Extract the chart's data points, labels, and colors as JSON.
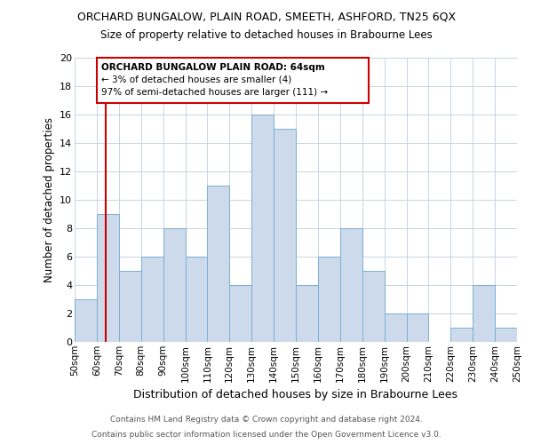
{
  "title": "ORCHARD BUNGALOW, PLAIN ROAD, SMEETH, ASHFORD, TN25 6QX",
  "subtitle": "Size of property relative to detached houses in Brabourne Lees",
  "xlabel": "Distribution of detached houses by size in Brabourne Lees",
  "ylabel": "Number of detached properties",
  "bin_edges": [
    50,
    60,
    70,
    80,
    90,
    100,
    110,
    120,
    130,
    140,
    150,
    160,
    170,
    180,
    190,
    200,
    210,
    220,
    230,
    240,
    250
  ],
  "counts": [
    3,
    9,
    5,
    6,
    8,
    6,
    11,
    4,
    16,
    15,
    4,
    6,
    8,
    5,
    2,
    2,
    0,
    1,
    4,
    1
  ],
  "bar_color": "#ccdaeb",
  "bar_edgecolor": "#7bafd4",
  "property_line_x": 64,
  "property_line_color": "#cc0000",
  "ylim": [
    0,
    20
  ],
  "yticks": [
    0,
    2,
    4,
    6,
    8,
    10,
    12,
    14,
    16,
    18,
    20
  ],
  "annotation_text_line1": "ORCHARD BUNGALOW PLAIN ROAD: 64sqm",
  "annotation_text_line2": "← 3% of detached houses are smaller (4)",
  "annotation_text_line3": "97% of semi-detached houses are larger (111) →",
  "footer_line1": "Contains HM Land Registry data © Crown copyright and database right 2024.",
  "footer_line2": "Contains public sector information licensed under the Open Government Licence v3.0.",
  "background_color": "#ffffff",
  "grid_color": "#c8d4e0"
}
